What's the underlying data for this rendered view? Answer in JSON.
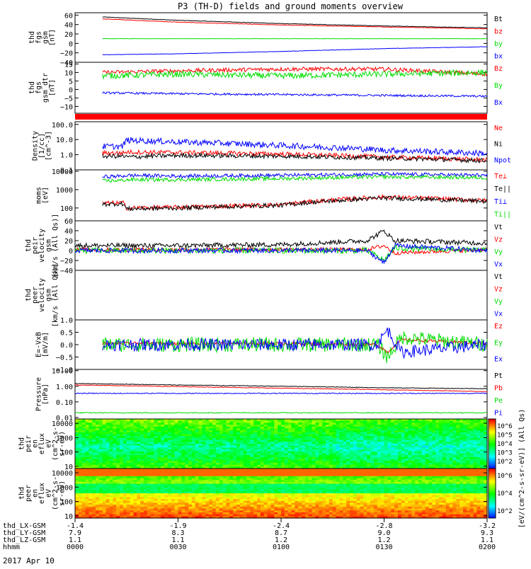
{
  "title": "P3 (TH-D) fields and ground moments overview",
  "date_label": "2017 Apr 10",
  "time_axis": {
    "row_labels": [
      "thd_LX-GSM",
      "thd_LY-GSM",
      "thd_LZ-GSM",
      "hhmm"
    ],
    "ticks": [
      {
        "t": 0,
        "values": [
          "-1.4",
          "7.9",
          "1.1",
          "0000"
        ]
      },
      {
        "t": 30,
        "values": [
          "-1.9",
          "8.3",
          "1.1",
          "0030"
        ]
      },
      {
        "t": 60,
        "values": [
          "-2.4",
          "8.7",
          "1.2",
          "0100"
        ]
      },
      {
        "t": 90,
        "values": [
          "-2.8",
          "9.0",
          "1.2",
          "0130"
        ]
      },
      {
        "t": 120,
        "values": [
          "-3.2",
          "9.3",
          "1.1",
          "0200"
        ]
      }
    ]
  },
  "colors": {
    "black": "#000000",
    "red": "#ff0000",
    "green": "#00dd00",
    "blue": "#0000ff"
  },
  "chart_data": [
    {
      "type": "line",
      "ylabel": [
        "thd",
        "fgs",
        "gsm",
        "[nT]"
      ],
      "ylim": [
        -40,
        65
      ],
      "yticks": [
        {
          "v": 60,
          "t": "60"
        },
        {
          "v": 40,
          "t": "40"
        },
        {
          "v": 20,
          "t": "20"
        },
        {
          "v": 0,
          "t": "0"
        },
        {
          "v": -20,
          "t": "−20"
        },
        {
          "v": -40,
          "t": "−40"
        }
      ],
      "x": [
        8,
        30,
        60,
        90,
        120
      ],
      "series": [
        {
          "name": "Bt",
          "color": "#000000",
          "values": [
            56,
            49,
            42,
            37,
            33
          ],
          "noise": 0.5
        },
        {
          "name": "bz",
          "color": "#ff0000",
          "values": [
            52,
            45,
            39,
            35,
            31
          ],
          "noise": 0.5
        },
        {
          "name": "by",
          "color": "#00dd00",
          "values": [
            10,
            10,
            10,
            10,
            10
          ],
          "noise": 0.3
        },
        {
          "name": "bx",
          "color": "#0000ff",
          "values": [
            -24,
            -22,
            -17,
            -11,
            -7
          ],
          "noise": 0.4
        }
      ]
    },
    {
      "type": "line",
      "ylabel": [
        "thd",
        "fgs",
        "gsm_dtr",
        "[nT]"
      ],
      "ylim": [
        -14,
        16
      ],
      "yticks": [
        {
          "v": 15,
          "t": "15"
        },
        {
          "v": 10,
          "t": "10"
        },
        {
          "v": 5,
          "t": "5"
        },
        {
          "v": 0,
          "t": "0"
        },
        {
          "v": -5,
          "t": "−5"
        },
        {
          "v": -10,
          "t": "−10"
        }
      ],
      "x": [
        8,
        30,
        60,
        90,
        120
      ],
      "series": [
        {
          "name": "Bz",
          "color": "#ff0000",
          "values": [
            10,
            11,
            12,
            12,
            9
          ],
          "noise": 1.2
        },
        {
          "name": "By",
          "color": "#00dd00",
          "values": [
            8,
            9,
            8,
            9,
            10
          ],
          "noise": 1.8
        },
        {
          "name": "Bx",
          "color": "#0000ff",
          "values": [
            -2,
            -2.5,
            -3,
            -3.5,
            -4
          ],
          "noise": 0.6
        }
      ]
    },
    {
      "type": "line",
      "ylabel": [
        "Density",
        "[1/cc]",
        "[cm^-3]"
      ],
      "log": true,
      "ylim": [
        0.1,
        150
      ],
      "yticks": [
        {
          "v": 100,
          "t": "100.0"
        },
        {
          "v": 10,
          "t": "10.0"
        },
        {
          "v": 1,
          "t": "1.0"
        },
        {
          "v": 0.1,
          "t": "0.1"
        }
      ],
      "x": [
        8,
        14,
        15,
        30,
        60,
        90,
        120
      ],
      "series": [
        {
          "name": "Ne",
          "color": "#ff0000",
          "values": [
            1.3,
            1.3,
            1.5,
            1.4,
            1.1,
            0.7,
            0.45
          ],
          "noise": 0.15
        },
        {
          "name": "Ni",
          "color": "#000000",
          "values": [
            0.8,
            0.8,
            0.7,
            0.9,
            0.8,
            0.6,
            0.4
          ],
          "noise": 0.15
        },
        {
          "name": "Npot",
          "color": "#0000ff",
          "values": [
            3.5,
            3.5,
            9,
            7,
            4,
            2,
            1.2
          ],
          "noise": 0.2
        }
      ]
    },
    {
      "type": "line",
      "ylabel": [
        "moms",
        "[eV]"
      ],
      "log": true,
      "ylim": [
        20,
        12000
      ],
      "yticks": [
        {
          "v": 10000,
          "t": "10000"
        },
        {
          "v": 1000,
          "t": "1000"
        },
        {
          "v": 100,
          "t": "100"
        }
      ],
      "x": [
        8,
        14,
        15,
        30,
        60,
        90,
        120
      ],
      "series": [
        {
          "name": "Te⊥",
          "color": "#ff0000",
          "values": [
            180,
            190,
            100,
            110,
            150,
            400,
            250
          ],
          "noise": 0.12
        },
        {
          "name": "Te||",
          "color": "#000000",
          "values": [
            160,
            170,
            90,
            100,
            140,
            350,
            230
          ],
          "noise": 0.12
        },
        {
          "name": "Ti⊥",
          "color": "#0000ff",
          "values": [
            5000,
            5500,
            6000,
            5500,
            6000,
            7000,
            6000
          ],
          "noise": 0.1
        },
        {
          "name": "Ti||",
          "color": "#00dd00",
          "values": [
            3000,
            3200,
            3500,
            3500,
            4000,
            5000,
            4500
          ],
          "noise": 0.1
        }
      ]
    },
    {
      "type": "line",
      "ylabel": [
        "thd",
        "peir",
        "velocity",
        "gsm",
        "[km/s (All Qs)]"
      ],
      "ylim": [
        -40,
        60
      ],
      "yticks": [
        {
          "v": 60,
          "t": "60"
        },
        {
          "v": 40,
          "t": "40"
        },
        {
          "v": 20,
          "t": "20"
        },
        {
          "v": 0,
          "t": "0"
        },
        {
          "v": -20,
          "t": "−20"
        },
        {
          "v": -40,
          "t": "−40"
        }
      ],
      "x": [
        0,
        30,
        60,
        85,
        90,
        93,
        120
      ],
      "series": [
        {
          "name": "Vt",
          "color": "#000000",
          "values": [
            10,
            10,
            12,
            20,
            40,
            20,
            15
          ],
          "noise": 5
        },
        {
          "name": "Vz",
          "color": "#ff0000",
          "values": [
            2,
            2,
            2,
            2,
            10,
            -5,
            2
          ],
          "noise": 4
        },
        {
          "name": "Vy",
          "color": "#00dd00",
          "values": [
            0,
            0,
            0,
            0,
            -20,
            5,
            0
          ],
          "noise": 6
        },
        {
          "name": "Vx",
          "color": "#0000ff",
          "values": [
            0,
            0,
            0,
            0,
            -25,
            10,
            0
          ],
          "noise": 5
        }
      ]
    },
    {
      "type": "line",
      "ylabel": [
        "thd",
        "peer",
        "velocity",
        "gsm",
        "[km/s (All Qs)]"
      ],
      "ylim": [
        -40,
        60
      ],
      "yticks": [],
      "x": [],
      "series": [
        {
          "name": "Vt",
          "color": "#000000",
          "values": []
        },
        {
          "name": "Vz",
          "color": "#ff0000",
          "values": []
        },
        {
          "name": "Vy",
          "color": "#00dd00",
          "values": []
        },
        {
          "name": "Vx",
          "color": "#0000ff",
          "values": []
        }
      ]
    },
    {
      "type": "line",
      "ylabel": [
        "E=-VxB",
        "[mV/m]"
      ],
      "ylim": [
        -1.0,
        1.0
      ],
      "yticks": [
        {
          "v": 1.0,
          "t": "1.0"
        },
        {
          "v": 0.5,
          "t": "0.5"
        },
        {
          "v": 0,
          "t": "0.0"
        },
        {
          "v": -0.5,
          "t": "−0.5"
        },
        {
          "v": -1.0,
          "t": "−1.0"
        }
      ],
      "x": [
        8,
        30,
        60,
        88,
        91,
        95,
        120
      ],
      "series": [
        {
          "name": "Ez",
          "color": "#ff0000",
          "values": [
            0.05,
            0.05,
            0.05,
            0.0,
            -0.3,
            0.2,
            0.05
          ],
          "noise": 0.06
        },
        {
          "name": "Ey",
          "color": "#00dd00",
          "values": [
            0.0,
            0.0,
            0.0,
            0.0,
            -0.5,
            0.3,
            0.0
          ],
          "noise": 0.3
        },
        {
          "name": "Ex",
          "color": "#0000ff",
          "values": [
            0.0,
            0.0,
            0.0,
            0.0,
            0.6,
            -0.3,
            0.0
          ],
          "noise": 0.25
        }
      ]
    },
    {
      "type": "line",
      "ylabel": [
        "Pressure",
        "[nPa]"
      ],
      "log": true,
      "ylim": [
        0.008,
        12
      ],
      "yticks": [
        {
          "v": 10,
          "t": "10.00"
        },
        {
          "v": 1,
          "t": "1.00"
        },
        {
          "v": 0.1,
          "t": "0.10"
        },
        {
          "v": 0.01,
          "t": "0.01"
        }
      ],
      "x": [
        0,
        30,
        60,
        90,
        120
      ],
      "series": [
        {
          "name": "Pt",
          "color": "#000000",
          "values": [
            1.5,
            1.2,
            1.0,
            0.8,
            0.7
          ],
          "noise": 0.02
        },
        {
          "name": "Pb",
          "color": "#ff0000",
          "values": [
            1.2,
            0.95,
            0.75,
            0.6,
            0.45
          ],
          "noise": 0.02
        },
        {
          "name": "Pe",
          "color": "#00dd00",
          "values": [
            0.02,
            0.02,
            0.02,
            0.02,
            0.02
          ],
          "noise": 0.03
        },
        {
          "name": "Pi",
          "color": "#0000ff",
          "values": [
            0.35,
            0.35,
            0.35,
            0.35,
            0.35
          ],
          "noise": 0.03
        }
      ]
    },
    {
      "type": "heatmap",
      "ylabel": [
        "thd",
        "peir",
        "en",
        "eflux",
        "eV",
        "(cm^2-s-",
        "sr-eV)"
      ],
      "log": true,
      "ylim": [
        7,
        20000
      ],
      "yticks": [
        {
          "v": 10000,
          "t": "10000"
        },
        {
          "v": 1000,
          "t": "1000"
        },
        {
          "v": 100,
          "t": "100"
        },
        {
          "v": 10,
          "t": "10"
        }
      ]
    },
    {
      "type": "heatmap",
      "ylabel": [
        "thd",
        "peer",
        "en",
        "eflux",
        "eV",
        "(cm^2-s-",
        "sr-eV)"
      ],
      "log": true,
      "ylim": [
        7,
        20000
      ],
      "yticks": [
        {
          "v": 10000,
          "t": "10000"
        },
        {
          "v": 1000,
          "t": "1000"
        },
        {
          "v": 100,
          "t": "100"
        },
        {
          "v": 10,
          "t": "10"
        }
      ]
    }
  ],
  "colorbar": {
    "label": "[eV/(cm^2-s-sr-eV)] (All Qs)",
    "ticks": [
      "10^6",
      "10^5",
      "10^4",
      "10^3",
      "10^2"
    ]
  },
  "colorbar2": {
    "ticks": [
      "10^6",
      "10^4",
      "10^2"
    ]
  }
}
